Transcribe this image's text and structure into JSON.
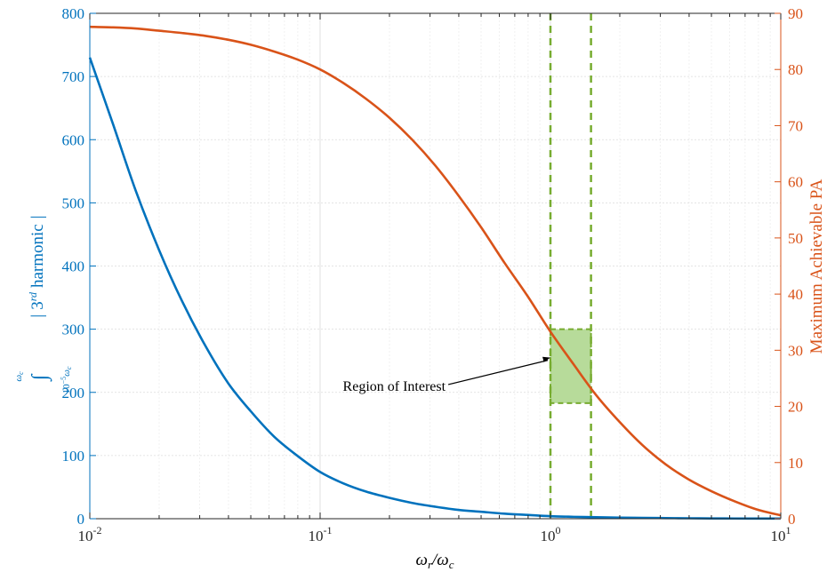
{
  "chart_data": {
    "type": "line",
    "x_scale": "log",
    "xlim": [
      0.01,
      10
    ],
    "x_ticks": [
      {
        "value": 0.01,
        "base": "10",
        "exp": "-2"
      },
      {
        "value": 0.1,
        "base": "10",
        "exp": "-1"
      },
      {
        "value": 1,
        "base": "10",
        "exp": "0"
      },
      {
        "value": 10,
        "base": "10",
        "exp": "1"
      }
    ],
    "xlabel": {
      "main": "ω",
      "sub1": "r",
      "slash": "/ω",
      "sub2": "c"
    },
    "left_axis": {
      "ylim": [
        0,
        800
      ],
      "ticks": [
        0,
        100,
        200,
        300,
        400,
        500,
        600,
        700,
        800
      ],
      "label": {
        "upper": "ω",
        "upper_sub": "c",
        "integral": "∫",
        "lower": "10",
        "lower_exp": "−5",
        "lower_tail": "ω",
        "lower_tail_sub": "c",
        "bar_open": "|",
        "text_a": "3",
        "text_sup": "rd",
        "text_b": "harmonic",
        "bar_close": "|"
      },
      "color": "#0072BD"
    },
    "right_axis": {
      "ylim": [
        0,
        90
      ],
      "ticks": [
        0,
        10,
        20,
        30,
        40,
        50,
        60,
        70,
        80,
        90
      ],
      "label": "Maximum Achievable PA",
      "color": "#D95319"
    },
    "series": [
      {
        "axis": "left",
        "color": "#0072BD",
        "x": [
          0.01,
          0.0126,
          0.0158,
          0.02,
          0.0251,
          0.0316,
          0.0398,
          0.05,
          0.0631,
          0.0794,
          0.1,
          0.126,
          0.158,
          0.2,
          0.251,
          0.316,
          0.398,
          0.5,
          0.631,
          0.794,
          1.0,
          1.26,
          1.58,
          2.0,
          2.51,
          3.16,
          3.98,
          5.0,
          6.31,
          7.94,
          10
        ],
        "y": [
          730,
          625,
          520,
          425,
          345,
          275,
          215,
          170,
          130,
          100,
          74,
          56,
          43,
          33,
          25,
          19,
          14,
          11,
          8,
          6,
          4,
          3,
          2.3,
          1.7,
          1.3,
          1,
          0.7,
          0.5,
          0.35,
          0.25,
          0.2
        ]
      },
      {
        "axis": "right",
        "color": "#D95319",
        "x": [
          0.01,
          0.0126,
          0.0158,
          0.02,
          0.0251,
          0.0316,
          0.0398,
          0.05,
          0.0631,
          0.0794,
          0.1,
          0.126,
          0.158,
          0.2,
          0.251,
          0.316,
          0.398,
          0.5,
          0.631,
          0.794,
          1.0,
          1.26,
          1.58,
          2.0,
          2.51,
          3.16,
          3.98,
          5.0,
          6.31,
          7.94,
          10
        ],
        "y": [
          87.6,
          87.5,
          87.3,
          86.9,
          86.5,
          86.0,
          85.3,
          84.4,
          83.2,
          81.8,
          80.0,
          77.6,
          74.8,
          71.4,
          67.5,
          62.9,
          57.6,
          51.9,
          45.6,
          39.7,
          33.3,
          27.5,
          22.0,
          17.2,
          13.1,
          9.7,
          7.0,
          4.9,
          3.1,
          1.6,
          0.6
        ]
      }
    ],
    "vlines": [
      {
        "x": 1.0,
        "color": "#77AC30",
        "style": "dashed"
      },
      {
        "x": 1.5,
        "color": "#77AC30",
        "style": "dashed"
      }
    ],
    "region": {
      "x0": 1.0,
      "x1": 1.5,
      "y0": 183,
      "y1": 300,
      "fill": "#B7DB9A",
      "stroke": "#77AC30"
    },
    "annotation": {
      "text": "Region of Interest",
      "arrow_to": {
        "x": 1.0,
        "y": 255
      },
      "text_at": {
        "x": 0.36,
        "y": 218
      }
    },
    "grid": true
  }
}
